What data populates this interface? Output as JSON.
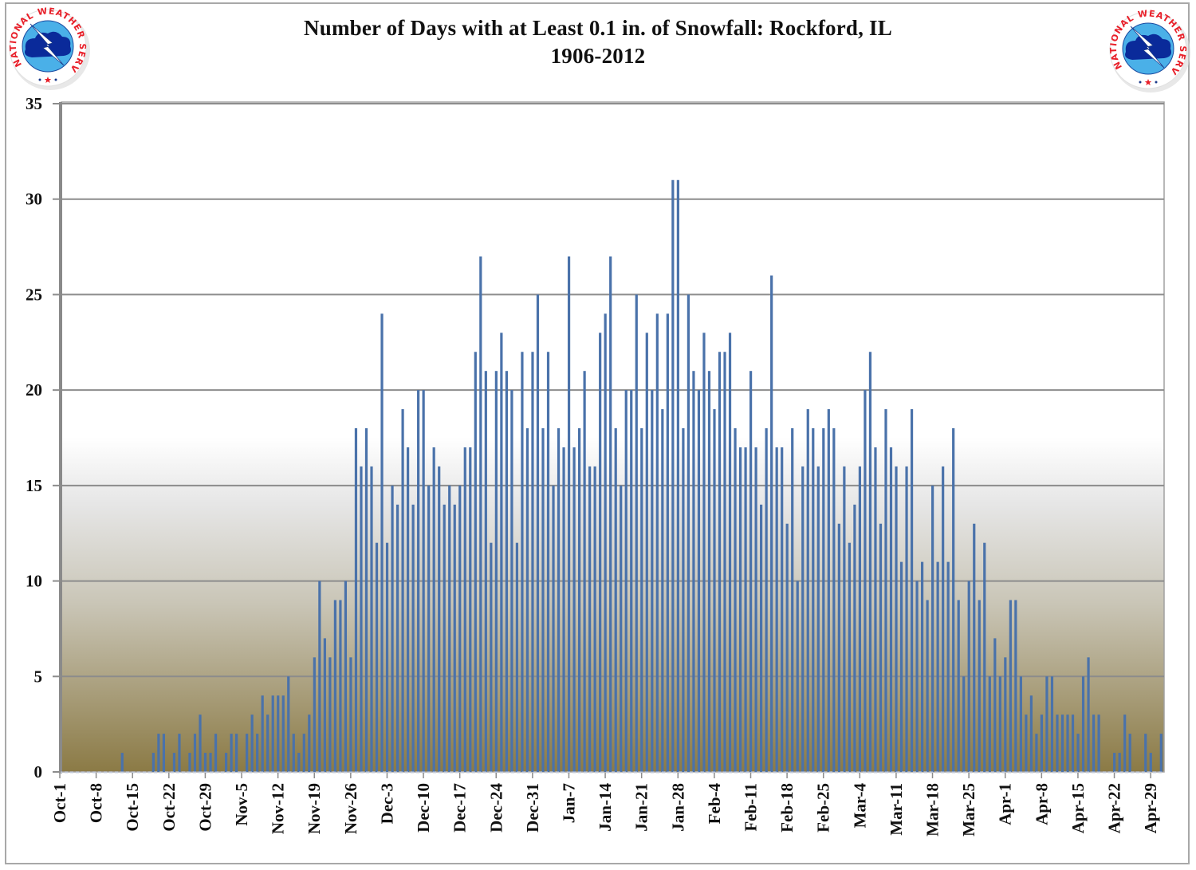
{
  "chart_data": {
    "type": "bar",
    "title": "Number of Days with at Least 0.1 in. of Snowfall:  Rockford, IL",
    "subtitle": "1906-2012",
    "xlabel": "",
    "ylabel": "",
    "ylim": [
      0,
      35
    ],
    "y_ticks": [
      0,
      5,
      10,
      15,
      20,
      25,
      30,
      35
    ],
    "grid": true,
    "legend": "none",
    "x_tick_labels": [
      "Oct-1",
      "Oct-8",
      "Oct-15",
      "Oct-22",
      "Oct-29",
      "Nov-5",
      "Nov-12",
      "Nov-19",
      "Nov-26",
      "Dec-3",
      "Dec-10",
      "Dec-17",
      "Dec-24",
      "Dec-31",
      "Jan-7",
      "Jan-14",
      "Jan-21",
      "Jan-28",
      "Feb-4",
      "Feb-11",
      "Feb-18",
      "Feb-25",
      "Mar-4",
      "Mar-11",
      "Mar-18",
      "Mar-25",
      "Apr-1",
      "Apr-8",
      "Apr-15",
      "Apr-22",
      "Apr-29"
    ],
    "values": [
      0,
      0,
      0,
      0,
      0,
      0,
      0,
      0,
      0,
      0,
      0,
      0,
      1,
      0,
      0,
      0,
      0,
      0,
      1,
      2,
      2,
      0,
      1,
      2,
      0,
      1,
      2,
      3,
      1,
      1,
      2,
      0,
      1,
      2,
      2,
      0,
      2,
      3,
      2,
      4,
      3,
      4,
      4,
      4,
      5,
      2,
      1,
      2,
      3,
      6,
      10,
      7,
      6,
      9,
      9,
      10,
      6,
      18,
      16,
      18,
      16,
      12,
      24,
      12,
      15,
      14,
      19,
      17,
      14,
      20,
      20,
      15,
      17,
      16,
      14,
      15,
      14,
      15,
      17,
      17,
      22,
      27,
      21,
      12,
      21,
      23,
      21,
      20,
      12,
      22,
      18,
      22,
      25,
      18,
      22,
      15,
      18,
      17,
      27,
      17,
      18,
      21,
      16,
      16,
      23,
      24,
      27,
      18,
      15,
      20,
      20,
      25,
      18,
      23,
      20,
      24,
      19,
      24,
      31,
      31,
      18,
      25,
      21,
      20,
      23,
      21,
      19,
      22,
      22,
      23,
      18,
      17,
      17,
      21,
      17,
      14,
      18,
      26,
      17,
      17,
      13,
      18,
      10,
      16,
      19,
      18,
      16,
      18,
      19,
      18,
      13,
      16,
      12,
      14,
      16,
      20,
      22,
      17,
      13,
      19,
      17,
      16,
      11,
      16,
      19,
      10,
      11,
      9,
      15,
      11,
      16,
      11,
      18,
      9,
      5,
      10,
      13,
      9,
      12,
      5,
      7,
      5,
      6,
      9,
      9,
      5,
      3,
      4,
      2,
      3,
      5,
      5,
      3,
      3,
      3,
      3,
      2,
      5,
      6,
      3,
      3,
      0,
      0,
      1,
      1,
      3,
      2,
      0,
      0,
      2,
      1,
      0,
      2
    ],
    "bar_color": "#4a72aa",
    "background_gradient": [
      "#ffffff",
      "#e6e6e6",
      "#c9c5b6",
      "#8b7a45"
    ]
  },
  "logo": {
    "text": "NATIONAL WEATHER SERVICE",
    "ring_text_color": "#e8202a",
    "cloud_color": "#0a2a9a",
    "sky_color": "#4ab0e8"
  }
}
